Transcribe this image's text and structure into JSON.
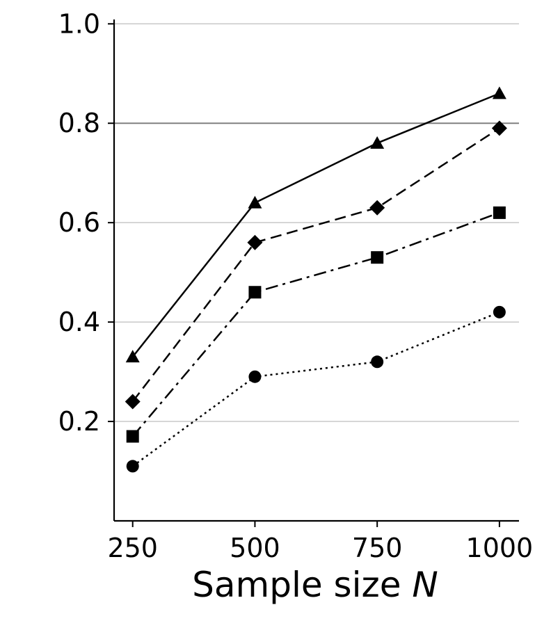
{
  "chart_data": {
    "type": "line",
    "title": "",
    "xlabel": "Sample size",
    "xlabel_symbol": "N",
    "ylabel": "",
    "x": [
      250,
      500,
      750,
      1000
    ],
    "x_tick_labels": [
      "250",
      "500",
      "750",
      "1000"
    ],
    "y_ticks": [
      0.2,
      0.4,
      0.6,
      0.8,
      1.0
    ],
    "y_tick_labels": [
      "0.2",
      "0.4",
      "0.6",
      "0.8",
      "1.0"
    ],
    "xlim": [
      212,
      1040
    ],
    "ylim": [
      0.0,
      1.02
    ],
    "grid": "horizontal",
    "reference_line": 0.8,
    "series": [
      {
        "marker": "triangle",
        "linestyle": "solid",
        "values": [
          0.33,
          0.64,
          0.76,
          0.86
        ]
      },
      {
        "marker": "diamond",
        "linestyle": "dashed",
        "values": [
          0.24,
          0.56,
          0.63,
          0.79
        ]
      },
      {
        "marker": "square",
        "linestyle": "dashdot",
        "values": [
          0.17,
          0.46,
          0.53,
          0.62
        ]
      },
      {
        "marker": "circle",
        "linestyle": "dotted",
        "values": [
          0.11,
          0.29,
          0.32,
          0.42
        ]
      }
    ],
    "colors": {
      "line": "#000000",
      "grid": "#c8c8c8",
      "reference": "#808080"
    }
  }
}
